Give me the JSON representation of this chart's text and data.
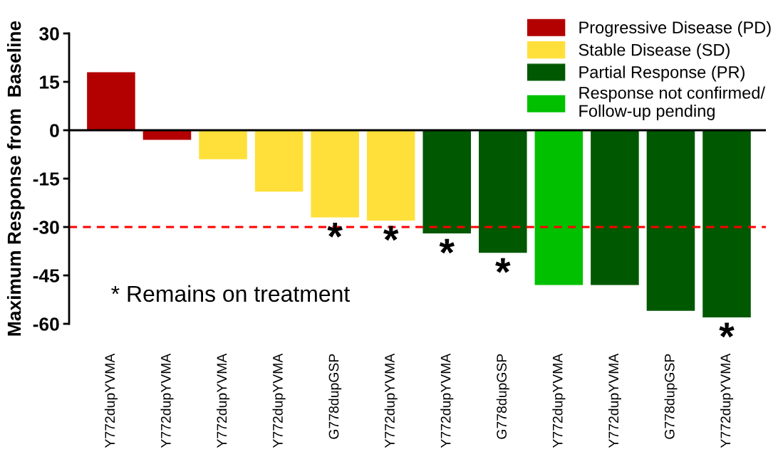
{
  "chart_data": {
    "type": "bar",
    "ylabel": "Maximum Response from  Baseline",
    "categories": [
      "Y772dupYVMA",
      "Y772dupYVMA",
      "Y772dupYVMA",
      "Y772dupYVMA",
      "G778dupGSP",
      "Y772dupYVMA",
      "Y772dupYVMA",
      "G778dupGSP",
      "Y772dupYVMA",
      "Y772dupYVMA",
      "G778dupGSP",
      "Y772dupYVMA"
    ],
    "series": [
      {
        "name": "Progressive Disease (PD)",
        "color": "#b30000",
        "values": [
          18,
          -3,
          null,
          null,
          null,
          null,
          null,
          null,
          null,
          null,
          null,
          null
        ]
      },
      {
        "name": "Stable Disease (SD)",
        "color": "#ffe03a",
        "values": [
          null,
          null,
          -9,
          -19,
          -27,
          -28,
          null,
          null,
          null,
          null,
          null,
          null
        ],
        "value_labels": [
          null,
          null,
          null,
          null,
          "*",
          "*",
          null,
          null,
          null,
          null,
          null,
          null
        ]
      },
      {
        "name": "Partial Response (PR)",
        "color": "#005800",
        "values": [
          null,
          null,
          null,
          null,
          null,
          null,
          -32,
          -38,
          null,
          -48,
          -56,
          -58
        ],
        "value_labels": [
          null,
          null,
          null,
          null,
          null,
          null,
          "*",
          "*",
          null,
          null,
          null,
          "*"
        ]
      },
      {
        "name": "Response not confirmed/\nFollow-up pending",
        "color": "#00c000",
        "values": [
          null,
          null,
          null,
          null,
          null,
          null,
          null,
          null,
          -48,
          null,
          null,
          null
        ]
      }
    ],
    "ylim": [
      -60,
      30
    ],
    "yticks": [
      30,
      15,
      0,
      -15,
      -30,
      -45,
      -60
    ],
    "ref_lines": [
      {
        "axis": "y",
        "value": -30,
        "color": "#ff0000",
        "line_style": "dashed"
      }
    ],
    "annotations": [
      "* Remains on treatment"
    ],
    "legend": "top right",
    "grid": false
  }
}
